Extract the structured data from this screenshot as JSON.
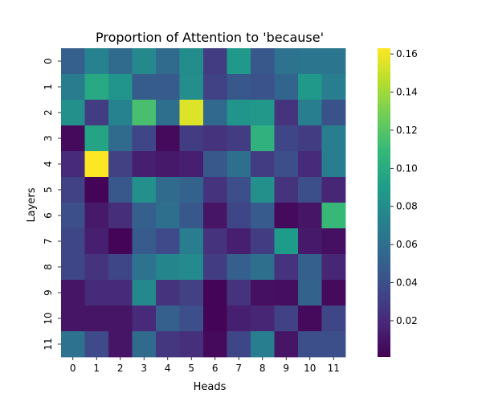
{
  "chart_data": {
    "type": "heatmap",
    "title": "Proportion of Attention to 'because'",
    "xlabel": "Heads",
    "ylabel": "Layers",
    "x_categories": [
      "0",
      "1",
      "2",
      "3",
      "4",
      "5",
      "6",
      "7",
      "8",
      "9",
      "10",
      "11"
    ],
    "y_categories": [
      "0",
      "1",
      "2",
      "3",
      "4",
      "5",
      "6",
      "7",
      "8",
      "9",
      "10",
      "11"
    ],
    "colormap": "viridis",
    "color_range": [
      0.001,
      0.163
    ],
    "colorbar_ticks": [
      {
        "value": 0.02,
        "label": "0.02"
      },
      {
        "value": 0.04,
        "label": "0.04"
      },
      {
        "value": 0.06,
        "label": "0.06"
      },
      {
        "value": 0.08,
        "label": "0.08"
      },
      {
        "value": 0.1,
        "label": "0.10"
      },
      {
        "value": 0.12,
        "label": "0.12"
      },
      {
        "value": 0.14,
        "label": "0.14"
      },
      {
        "value": 0.16,
        "label": "0.16"
      }
    ],
    "values": [
      [
        0.05,
        0.073,
        0.057,
        0.077,
        0.057,
        0.08,
        0.03,
        0.088,
        0.045,
        0.062,
        0.065,
        0.065
      ],
      [
        0.068,
        0.098,
        0.085,
        0.048,
        0.047,
        0.081,
        0.033,
        0.045,
        0.043,
        0.053,
        0.088,
        0.07
      ],
      [
        0.082,
        0.03,
        0.073,
        0.115,
        0.06,
        0.155,
        0.055,
        0.085,
        0.087,
        0.025,
        0.07,
        0.042
      ],
      [
        0.005,
        0.095,
        0.057,
        0.035,
        0.005,
        0.03,
        0.025,
        0.03,
        0.105,
        0.035,
        0.03,
        0.07
      ],
      [
        0.02,
        0.163,
        0.032,
        0.015,
        0.012,
        0.015,
        0.045,
        0.06,
        0.03,
        0.04,
        0.02,
        0.07
      ],
      [
        0.033,
        0.003,
        0.045,
        0.082,
        0.057,
        0.052,
        0.025,
        0.04,
        0.082,
        0.025,
        0.04,
        0.018
      ],
      [
        0.04,
        0.012,
        0.022,
        0.05,
        0.06,
        0.045,
        0.01,
        0.035,
        0.047,
        0.005,
        0.01,
        0.11
      ],
      [
        0.035,
        0.015,
        0.003,
        0.047,
        0.037,
        0.07,
        0.025,
        0.015,
        0.03,
        0.09,
        0.012,
        0.008
      ],
      [
        0.035,
        0.025,
        0.035,
        0.062,
        0.075,
        0.078,
        0.03,
        0.05,
        0.06,
        0.025,
        0.05,
        0.018
      ],
      [
        0.01,
        0.02,
        0.02,
        0.077,
        0.025,
        0.032,
        0.003,
        0.025,
        0.008,
        0.007,
        0.052,
        0.005
      ],
      [
        0.01,
        0.01,
        0.01,
        0.02,
        0.05,
        0.04,
        0.003,
        0.015,
        0.018,
        0.033,
        0.005,
        0.035
      ],
      [
        0.062,
        0.037,
        0.01,
        0.057,
        0.027,
        0.023,
        0.005,
        0.035,
        0.07,
        0.01,
        0.04,
        0.04
      ]
    ]
  }
}
